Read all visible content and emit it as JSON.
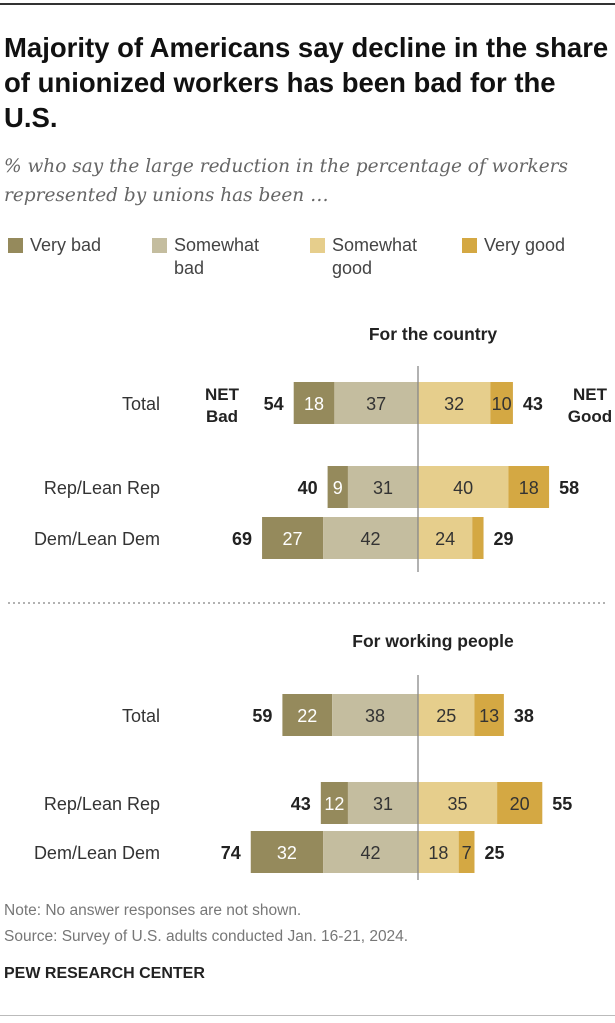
{
  "title": "Majority of Americans say decline in the share of unionized workers has been bad for the U.S.",
  "subtitle": "% who say the large reduction in the percentage of workers represented by unions has been …",
  "legend": [
    {
      "label": "Very bad",
      "color": "#958a5c"
    },
    {
      "label": "Somewhat bad",
      "color": "#c4bd9f"
    },
    {
      "label": "Somewhat good",
      "color": "#e6ce8c"
    },
    {
      "label": "Very good",
      "color": "#d4a843"
    }
  ],
  "net_labels": {
    "bad": "NET Bad",
    "good": "NET Good"
  },
  "chart_data": {
    "type": "bar",
    "orientation": "horizontal diverging stacked",
    "series_names": [
      "Very bad",
      "Somewhat bad",
      "Somewhat good",
      "Very good"
    ],
    "panels": [
      {
        "title": "For the country",
        "rows": [
          {
            "label": "Total",
            "very_bad": 18,
            "somewhat_bad": 37,
            "somewhat_good": 32,
            "very_good": 10,
            "net_bad": 54,
            "net_good": 43
          },
          {
            "label": "Rep/Lean Rep",
            "very_bad": 9,
            "somewhat_bad": 31,
            "somewhat_good": 40,
            "very_good": 18,
            "net_bad": 40,
            "net_good": 58
          },
          {
            "label": "Dem/Lean Dem",
            "very_bad": 27,
            "somewhat_bad": 42,
            "somewhat_good": 24,
            "very_good": 5,
            "very_good_label_shown": false,
            "net_bad": 69,
            "net_good": 29
          }
        ]
      },
      {
        "title": "For working people",
        "rows": [
          {
            "label": "Total",
            "very_bad": 22,
            "somewhat_bad": 38,
            "somewhat_good": 25,
            "very_good": 13,
            "net_bad": 59,
            "net_good": 38
          },
          {
            "label": "Rep/Lean Rep",
            "very_bad": 12,
            "somewhat_bad": 31,
            "somewhat_good": 35,
            "very_good": 20,
            "net_bad": 43,
            "net_good": 55
          },
          {
            "label": "Dem/Lean Dem",
            "very_bad": 32,
            "somewhat_bad": 42,
            "somewhat_good": 18,
            "very_good": 7,
            "net_bad": 74,
            "net_good": 25
          }
        ]
      }
    ]
  },
  "footer": {
    "note": "Note: No answer responses are not shown.",
    "source": "Source: Survey of U.S. adults conducted Jan. 16-21, 2024.",
    "brand": "PEW RESEARCH CENTER"
  }
}
